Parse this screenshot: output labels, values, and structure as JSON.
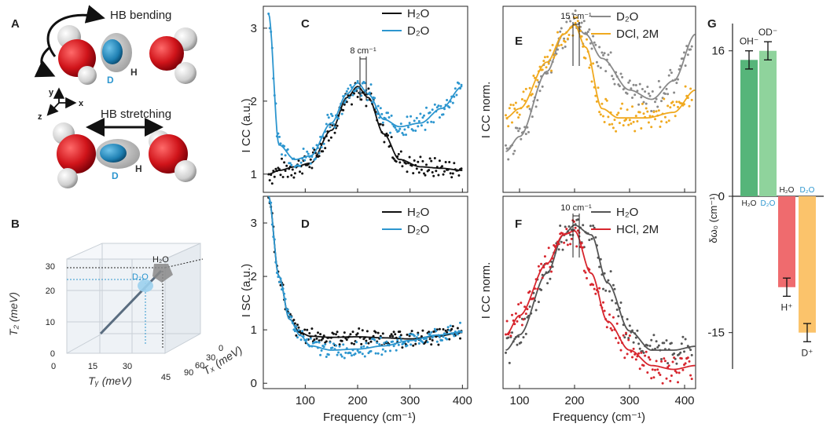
{
  "panels": {
    "A": "A",
    "B": "B",
    "C": "C",
    "D": "D",
    "E": "E",
    "F": "F",
    "G": "G"
  },
  "panel_a": {
    "bending_label": "HB bending",
    "stretching_label": "HB stretching",
    "d_label": "D",
    "h_label": "H",
    "axis_x": "x",
    "axis_y": "y",
    "axis_z": "z"
  },
  "panel_b": {
    "z_label": "T₂ (meV)",
    "y_label": "Tᵧ (meV)",
    "x_label": "Tₓ (meV)",
    "h2o": "H₂O",
    "d2o": "D₂O",
    "z_ticks": [
      "0",
      "10",
      "20",
      "30"
    ],
    "y_ticks": [
      "0",
      "15",
      "30",
      "45"
    ],
    "x_ticks": [
      "0",
      "30",
      "60",
      "90"
    ]
  },
  "colors": {
    "h2o": "#111111",
    "d2o": "#2d96cf",
    "d2o_e": "#8a8a8a",
    "dcl": "#f0a91f",
    "h2o_f": "#555555",
    "hcl": "#d7262e",
    "g_oh": "#56b57a",
    "g_od": "#8fd39c",
    "g_h": "#ef6b6e",
    "g_d": "#fbc36b"
  },
  "chart_data": [
    {
      "id": "C",
      "type": "line",
      "xlabel": "",
      "ylabel": "I_CC (a.u.)",
      "xlim": [
        20,
        410
      ],
      "ylim": [
        0.75,
        3.3
      ],
      "yticks": [
        "1",
        "2",
        "3"
      ],
      "annotation": "8 cm⁻¹",
      "series": [
        {
          "name": "H₂O",
          "x": [
            30,
            50,
            80,
            110,
            150,
            180,
            200,
            220,
            250,
            280,
            320,
            360,
            400
          ],
          "y": [
            1.0,
            1.05,
            1.1,
            1.15,
            1.6,
            2.05,
            2.2,
            2.05,
            1.55,
            1.2,
            1.1,
            1.08,
            1.05
          ]
        },
        {
          "name": "D₂O",
          "x": [
            30,
            50,
            80,
            110,
            150,
            180,
            200,
            220,
            250,
            280,
            320,
            360,
            400
          ],
          "y": [
            3.2,
            1.4,
            1.2,
            1.25,
            1.7,
            2.1,
            2.25,
            2.1,
            1.75,
            1.65,
            1.7,
            1.9,
            2.2
          ]
        }
      ]
    },
    {
      "id": "D",
      "type": "line",
      "xlabel": "Frequency (cm⁻¹)",
      "ylabel": "I_SC (a.u.)",
      "xlim": [
        20,
        410
      ],
      "ylim": [
        -0.1,
        3.5
      ],
      "xticks": [
        "100",
        "200",
        "300",
        "400"
      ],
      "yticks": [
        "0",
        "1",
        "2",
        "3"
      ],
      "series": [
        {
          "name": "H₂O",
          "x": [
            30,
            50,
            70,
            90,
            110,
            150,
            200,
            250,
            300,
            350,
            400
          ],
          "y": [
            3.5,
            2.0,
            1.2,
            0.95,
            0.88,
            0.86,
            0.87,
            0.85,
            0.83,
            0.88,
            0.95
          ]
        },
        {
          "name": "D₂O",
          "x": [
            30,
            50,
            70,
            90,
            110,
            150,
            200,
            250,
            300,
            350,
            400
          ],
          "y": [
            3.5,
            2.0,
            1.2,
            0.9,
            0.7,
            0.62,
            0.64,
            0.7,
            0.8,
            0.9,
            0.96
          ]
        }
      ]
    },
    {
      "id": "E",
      "type": "line",
      "xlabel": "",
      "ylabel": "I_CC norm.",
      "xlim": [
        70,
        420
      ],
      "ylim": [
        0,
        1
      ],
      "annotation": "15 cm⁻¹",
      "series": [
        {
          "name": "D₂O",
          "x": [
            75,
            100,
            150,
            180,
            200,
            220,
            250,
            300,
            340,
            380,
            420
          ],
          "y": [
            0.22,
            0.3,
            0.65,
            0.85,
            0.9,
            0.85,
            0.72,
            0.55,
            0.5,
            0.6,
            0.85
          ]
        },
        {
          "name": "DCl, 2M",
          "x": [
            75,
            100,
            150,
            180,
            200,
            220,
            250,
            280,
            330,
            380,
            420
          ],
          "y": [
            0.4,
            0.45,
            0.7,
            0.85,
            0.9,
            0.78,
            0.45,
            0.4,
            0.4,
            0.43,
            0.55
          ]
        }
      ]
    },
    {
      "id": "F",
      "type": "line",
      "xlabel": "Frequency (cm⁻¹)",
      "ylabel": "I_CC norm.",
      "xlim": [
        70,
        420
      ],
      "ylim": [
        0,
        1
      ],
      "xticks": [
        "100",
        "200",
        "300",
        "400"
      ],
      "annotation": "10 cm⁻¹",
      "series": [
        {
          "name": "H₂O",
          "x": [
            75,
            100,
            150,
            180,
            200,
            230,
            260,
            300,
            340,
            380,
            420
          ],
          "y": [
            0.2,
            0.28,
            0.6,
            0.8,
            0.85,
            0.8,
            0.55,
            0.3,
            0.2,
            0.2,
            0.22
          ]
        },
        {
          "name": "HCl, 2M",
          "x": [
            75,
            100,
            150,
            180,
            200,
            230,
            260,
            300,
            340,
            380,
            420
          ],
          "y": [
            0.28,
            0.38,
            0.65,
            0.8,
            0.82,
            0.6,
            0.35,
            0.2,
            0.12,
            0.1,
            0.12
          ]
        }
      ]
    },
    {
      "id": "G",
      "type": "bar",
      "ylabel": "δω₀ (cm⁻¹)",
      "ylim": [
        -19,
        19
      ],
      "yticks": [
        "16",
        "0",
        "-15"
      ],
      "categories": [
        "OH⁻",
        "OD⁻",
        "H⁺",
        "D⁺"
      ],
      "bar_top_labels": [
        "H₂O",
        "D₂O",
        "H₂O",
        "D₂O"
      ],
      "values": [
        15.0,
        16.0,
        -10.0,
        -15.0
      ],
      "errors": [
        1.0,
        1.0,
        1.0,
        1.0
      ]
    }
  ]
}
